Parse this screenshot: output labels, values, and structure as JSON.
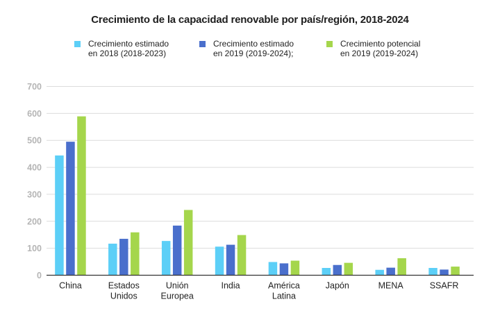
{
  "chart_data": {
    "type": "bar",
    "title": "Crecimiento de la capacidad renovable por país/región, 2018-2024",
    "xlabel": "",
    "ylabel": "",
    "ylim": [
      0,
      700
    ],
    "yticks": [
      0,
      100,
      200,
      300,
      400,
      500,
      600,
      700
    ],
    "grid": true,
    "legend_position": "top",
    "categories": [
      [
        "China"
      ],
      [
        "Estados",
        "Unidos"
      ],
      [
        "Unión",
        "Europea"
      ],
      [
        "India"
      ],
      [
        "América",
        "Latina"
      ],
      [
        "Japón"
      ],
      [
        "MENA"
      ],
      [
        "SSAFR"
      ]
    ],
    "series": [
      {
        "name": "Crecimiento estimado\nen 2018 (2018-2023)",
        "color": "#5ccff7",
        "values": [
          444,
          117,
          127,
          106,
          49,
          27,
          20,
          27
        ]
      },
      {
        "name": "Crecimiento estimado\nen 2019 (2019-2024);",
        "color": "#4a6fcc",
        "values": [
          495,
          135,
          184,
          113,
          44,
          38,
          28,
          21
        ]
      },
      {
        "name": "Crecimiento potencial\nen 2019 (2019-2024)",
        "color": "#a5d64c",
        "values": [
          589,
          159,
          242,
          149,
          54,
          46,
          63,
          32
        ]
      }
    ]
  }
}
